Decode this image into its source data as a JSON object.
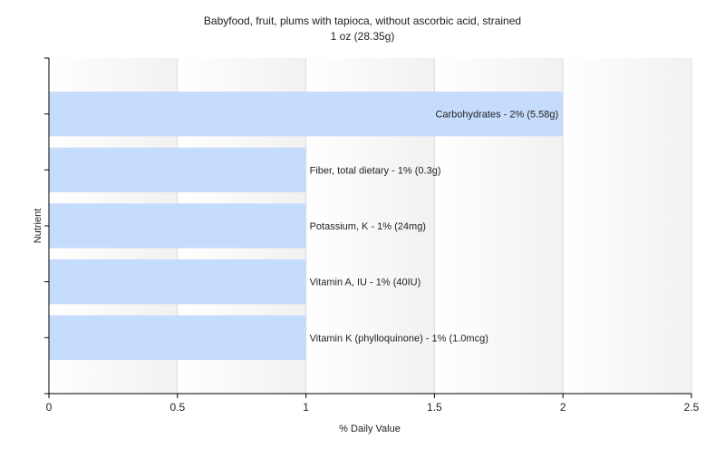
{
  "chart_data": {
    "type": "bar",
    "orientation": "horizontal",
    "title": "Babyfood, fruit, plums with tapioca, without ascorbic acid, strained",
    "subtitle": "1 oz (28.35g)",
    "xlabel": "% Daily Value",
    "ylabel": "Nutrient",
    "xlim": [
      0,
      2.5
    ],
    "xticks": [
      0,
      0.5,
      1,
      1.5,
      2,
      2.5
    ],
    "grid": true,
    "bar_color": "#c6dcfc",
    "categories": [
      "Carbohydrates",
      "Fiber, total dietary",
      "Potassium, K",
      "Vitamin A, IU",
      "Vitamin K (phylloquinone)"
    ],
    "values": [
      2,
      1,
      1,
      1,
      1
    ],
    "labels": [
      "Carbohydrates - 2% (5.58g)",
      "Fiber, total dietary - 1% (0.3g)",
      "Potassium, K - 1% (24mg)",
      "Vitamin A, IU - 1% (40IU)",
      "Vitamin K (phylloquinone) - 1% (1.0mcg)"
    ]
  }
}
